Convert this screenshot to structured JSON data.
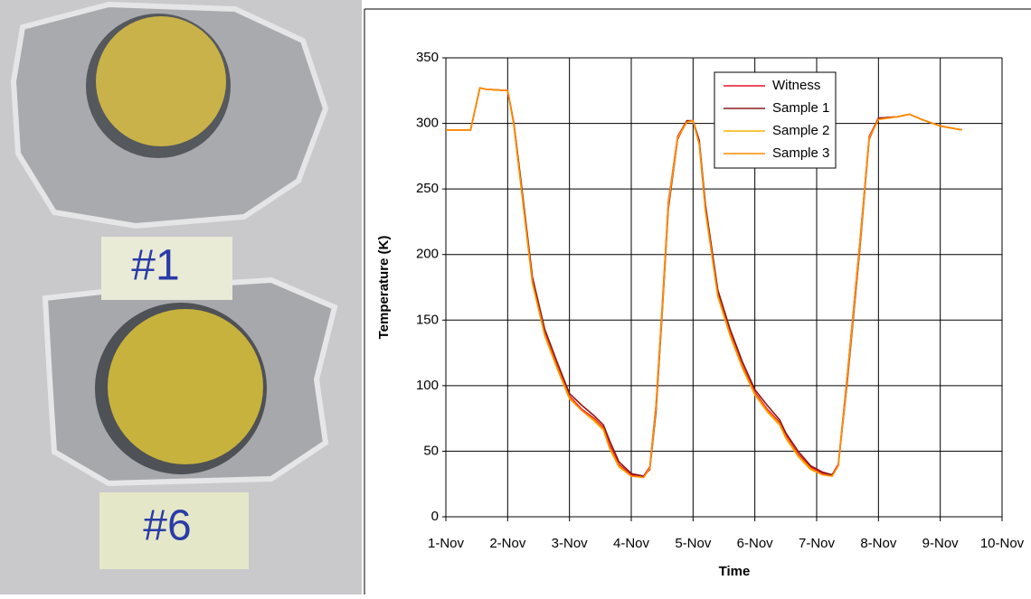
{
  "photo": {
    "labels": [
      "#1",
      "#6"
    ]
  },
  "chart_data": {
    "type": "line",
    "x_label": "Time",
    "y_label": "Temperature (K)",
    "x": [
      1.0,
      1.4,
      1.55,
      1.65,
      2.0,
      2.1,
      2.2,
      2.4,
      2.6,
      2.8,
      3.0,
      3.2,
      3.4,
      3.55,
      3.65,
      3.8,
      4.0,
      4.2,
      4.3,
      4.4,
      4.5,
      4.6,
      4.75,
      4.9,
      5.0,
      5.1,
      5.2,
      5.4,
      5.6,
      5.8,
      6.0,
      6.2,
      6.4,
      6.5,
      6.7,
      6.9,
      7.1,
      7.25,
      7.35,
      7.5,
      7.7,
      7.85,
      8.0,
      8.3,
      8.5,
      8.7,
      9.0,
      9.35
    ],
    "series": [
      {
        "name": "Witness",
        "color": "#e8102a",
        "values": [
          295,
          295,
          327,
          326,
          325,
          300,
          260,
          180,
          140,
          115,
          92,
          82,
          75,
          68,
          55,
          40,
          32,
          31,
          38,
          85,
          160,
          240,
          290,
          302,
          302,
          285,
          235,
          170,
          140,
          115,
          95,
          82,
          72,
          62,
          48,
          38,
          33,
          32,
          40,
          110,
          210,
          290,
          304,
          305,
          307,
          303,
          298,
          295
        ]
      },
      {
        "name": "Sample 1",
        "color": "#8b1a1a",
        "values": [
          295,
          295,
          327,
          326,
          325,
          300,
          262,
          183,
          143,
          118,
          94,
          85,
          77,
          70,
          58,
          42,
          33,
          31,
          36,
          80,
          155,
          235,
          288,
          302,
          302,
          287,
          238,
          173,
          143,
          118,
          97,
          85,
          74,
          64,
          50,
          39,
          34,
          32,
          39,
          105,
          205,
          288,
          304,
          305,
          307,
          303,
          298,
          295
        ]
      },
      {
        "name": "Sample 2",
        "color": "#ffb000",
        "values": [
          295,
          295,
          327,
          326,
          325,
          298,
          258,
          178,
          138,
          113,
          90,
          81,
          73,
          66,
          52,
          38,
          31,
          30,
          37,
          84,
          158,
          238,
          289,
          301,
          302,
          284,
          233,
          168,
          138,
          113,
          93,
          80,
          70,
          60,
          46,
          36,
          32,
          31,
          39,
          108,
          208,
          289,
          303,
          305,
          307,
          303,
          298,
          295
        ]
      },
      {
        "name": "Sample 3",
        "color": "#ff8c00",
        "values": [
          295,
          295,
          327,
          326,
          325,
          299,
          259,
          179,
          139,
          114,
          91,
          81,
          74,
          67,
          53,
          39,
          31,
          30,
          37,
          84,
          159,
          239,
          289,
          301,
          302,
          284,
          234,
          169,
          139,
          114,
          94,
          81,
          71,
          61,
          47,
          37,
          32,
          31,
          39,
          109,
          209,
          289,
          303,
          305,
          307,
          303,
          298,
          295
        ]
      }
    ],
    "xlim": [
      1,
      10
    ],
    "xticks": [
      {
        "value": 1,
        "label": "1-Nov"
      },
      {
        "value": 2,
        "label": "2-Nov"
      },
      {
        "value": 3,
        "label": "3-Nov"
      },
      {
        "value": 4,
        "label": "4-Nov"
      },
      {
        "value": 5,
        "label": "5-Nov"
      },
      {
        "value": 6,
        "label": "6-Nov"
      },
      {
        "value": 7,
        "label": "7-Nov"
      },
      {
        "value": 8,
        "label": "8-Nov"
      },
      {
        "value": 9,
        "label": "9-Nov"
      },
      {
        "value": 10,
        "label": "10-Nov"
      }
    ],
    "ylim": [
      0,
      350
    ],
    "yticks": [
      0,
      50,
      100,
      150,
      200,
      250,
      300,
      350
    ],
    "grid": true
  }
}
